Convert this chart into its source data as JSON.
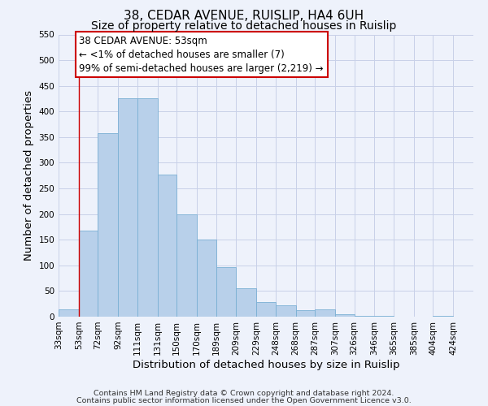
{
  "title": "38, CEDAR AVENUE, RUISLIP, HA4 6UH",
  "subtitle": "Size of property relative to detached houses in Ruislip",
  "xlabel": "Distribution of detached houses by size in Ruislip",
  "ylabel": "Number of detached properties",
  "categories": [
    "33sqm",
    "53sqm",
    "72sqm",
    "92sqm",
    "111sqm",
    "131sqm",
    "150sqm",
    "170sqm",
    "189sqm",
    "209sqm",
    "229sqm",
    "248sqm",
    "268sqm",
    "287sqm",
    "307sqm",
    "326sqm",
    "346sqm",
    "365sqm",
    "385sqm",
    "404sqm",
    "424sqm"
  ],
  "bin_edges": [
    33,
    53,
    72,
    92,
    111,
    131,
    150,
    170,
    189,
    209,
    229,
    248,
    268,
    287,
    307,
    326,
    346,
    365,
    385,
    404,
    424,
    444
  ],
  "values": [
    15,
    168,
    357,
    425,
    425,
    277,
    200,
    150,
    96,
    55,
    28,
    22,
    13,
    14,
    5,
    2,
    2,
    0,
    0,
    2,
    0
  ],
  "bar_color": "#b8d0ea",
  "bar_edge_color": "#7aafd4",
  "vline_x": 53,
  "vline_color": "#cc0000",
  "ylim": [
    0,
    550
  ],
  "yticks": [
    0,
    50,
    100,
    150,
    200,
    250,
    300,
    350,
    400,
    450,
    500,
    550
  ],
  "annotation_text": "38 CEDAR AVENUE: 53sqm\n← <1% of detached houses are smaller (7)\n99% of semi-detached houses are larger (2,219) →",
  "annotation_box_color": "#ffffff",
  "annotation_box_edge": "#cc0000",
  "footnote1": "Contains HM Land Registry data © Crown copyright and database right 2024.",
  "footnote2": "Contains public sector information licensed under the Open Government Licence v3.0.",
  "background_color": "#eef2fb",
  "grid_color": "#c8d0e8",
  "title_fontsize": 11,
  "subtitle_fontsize": 10,
  "axis_label_fontsize": 9.5,
  "tick_fontsize": 7.5,
  "annotation_fontsize": 8.5,
  "footnote_fontsize": 6.8
}
